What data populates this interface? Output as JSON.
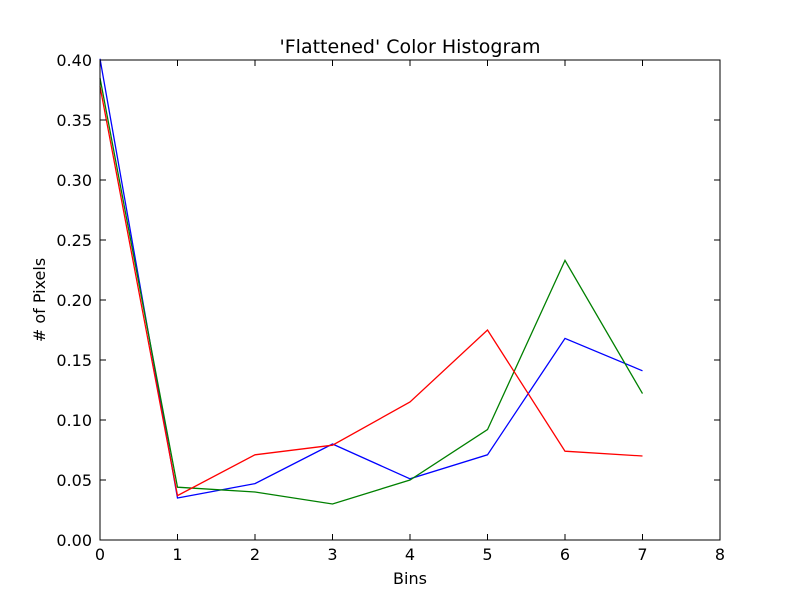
{
  "chart_data": {
    "type": "line",
    "title": "'Flattened' Color Histogram",
    "xlabel": "Bins",
    "ylabel": "# of Pixels",
    "xlim": [
      0,
      8
    ],
    "ylim": [
      0,
      0.4
    ],
    "xticks": [
      0,
      1,
      2,
      3,
      4,
      5,
      6,
      7,
      8
    ],
    "xtick_labels": [
      "0",
      "1",
      "2",
      "3",
      "4",
      "5",
      "6",
      "7",
      "8"
    ],
    "yticks": [
      0,
      0.05,
      0.1,
      0.15,
      0.2,
      0.25,
      0.3,
      0.35,
      0.4
    ],
    "ytick_labels": [
      "0.00",
      "0.05",
      "0.10",
      "0.15",
      "0.20",
      "0.25",
      "0.30",
      "0.35",
      "0.40"
    ],
    "grid": false,
    "legend": "none",
    "x": [
      0,
      1,
      2,
      3,
      4,
      5,
      6,
      7
    ],
    "series": [
      {
        "color": "#0000ff",
        "values": [
          0.401,
          0.035,
          0.047,
          0.08,
          0.051,
          0.071,
          0.168,
          0.141
        ]
      },
      {
        "color": "#008000",
        "values": [
          0.385,
          0.044,
          0.04,
          0.03,
          0.05,
          0.092,
          0.233,
          0.122
        ]
      },
      {
        "color": "#ff0000",
        "values": [
          0.378,
          0.037,
          0.071,
          0.079,
          0.115,
          0.175,
          0.074,
          0.07
        ]
      }
    ]
  }
}
